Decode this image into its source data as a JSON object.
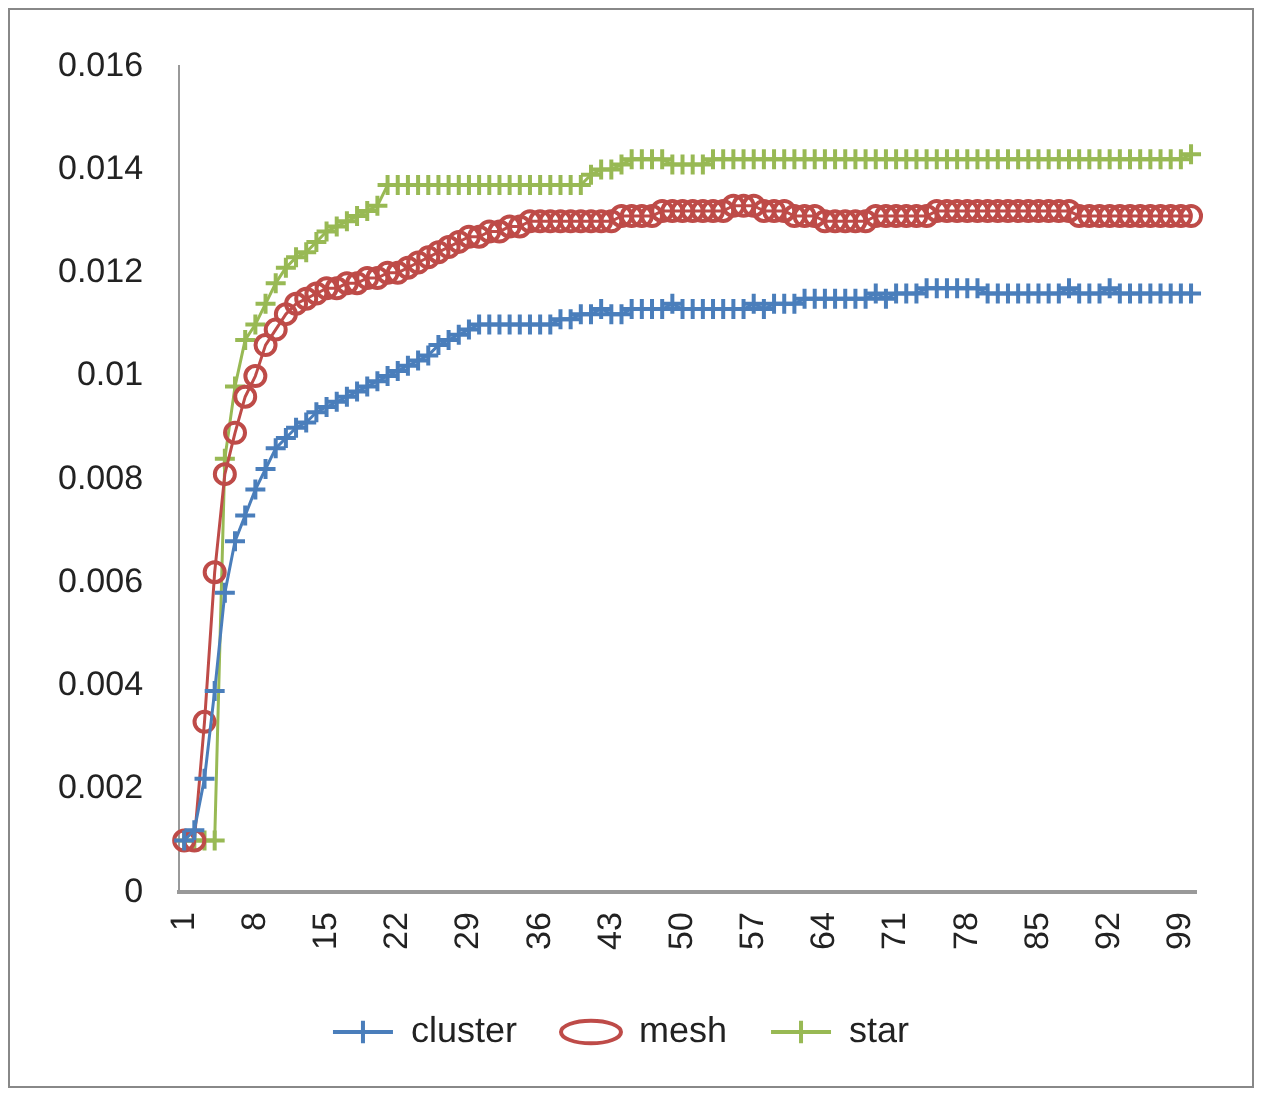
{
  "chart_data": {
    "type": "line",
    "categories": [
      "1",
      null,
      null,
      null,
      null,
      null,
      null,
      "8",
      null,
      null,
      null,
      null,
      null,
      null,
      "15",
      null,
      null,
      null,
      null,
      null,
      null,
      "22",
      null,
      null,
      null,
      null,
      null,
      null,
      "29",
      null,
      null,
      null,
      null,
      null,
      null,
      "36",
      null,
      null,
      null,
      null,
      null,
      null,
      "43",
      null,
      null,
      null,
      null,
      null,
      null,
      "50",
      null,
      null,
      null,
      null,
      null,
      null,
      "57",
      null,
      null,
      null,
      null,
      null,
      null,
      "64",
      null,
      null,
      null,
      null,
      null,
      null,
      "71",
      null,
      null,
      null,
      null,
      null,
      null,
      "78",
      null,
      null,
      null,
      null,
      null,
      null,
      "85",
      null,
      null,
      null,
      null,
      null,
      null,
      "92",
      null,
      null,
      null,
      null,
      null,
      null,
      "99",
      null
    ],
    "series": [
      {
        "name": "cluster",
        "color": "#4a7ebb",
        "marker": "cross",
        "values": [
          0.001,
          0.0012,
          0.0022,
          0.0039,
          0.0058,
          0.0068,
          0.0073,
          0.0078,
          0.0082,
          0.0086,
          0.0088,
          0.009,
          0.0091,
          0.0093,
          0.0094,
          0.0095,
          0.0096,
          0.0097,
          0.0098,
          0.0099,
          0.01,
          0.0101,
          0.0102,
          0.0103,
          0.0104,
          0.0106,
          0.0107,
          0.0108,
          0.0109,
          0.011,
          0.011,
          0.011,
          0.011,
          0.011,
          0.011,
          0.011,
          0.011,
          0.0111,
          0.0111,
          0.0112,
          0.0112,
          0.0113,
          0.0112,
          0.0112,
          0.0113,
          0.0113,
          0.0113,
          0.0113,
          0.0114,
          0.0113,
          0.0113,
          0.0113,
          0.0113,
          0.0113,
          0.0113,
          0.0113,
          0.0114,
          0.0113,
          0.0114,
          0.0114,
          0.0114,
          0.0115,
          0.0115,
          0.0115,
          0.0115,
          0.0115,
          0.0115,
          0.0115,
          0.0116,
          0.0115,
          0.0116,
          0.0116,
          0.0116,
          0.0117,
          0.0117,
          0.0117,
          0.0117,
          0.0117,
          0.0117,
          0.0116,
          0.0116,
          0.0116,
          0.0116,
          0.0116,
          0.0116,
          0.0116,
          0.0116,
          0.0117,
          0.0116,
          0.0116,
          0.0116,
          0.0117,
          0.0116,
          0.0116,
          0.0116,
          0.0116,
          0.0116,
          0.0116,
          0.0116,
          0.0116
        ]
      },
      {
        "name": "mesh",
        "color": "#be4b48",
        "marker": "circle",
        "values": [
          0.001,
          0.001,
          0.0033,
          0.0062,
          0.0081,
          0.0089,
          0.0096,
          0.01,
          0.0106,
          0.0109,
          0.0112,
          0.0114,
          0.0115,
          0.0116,
          0.0117,
          0.0117,
          0.0118,
          0.0118,
          0.0119,
          0.0119,
          0.012,
          0.012,
          0.0121,
          0.0122,
          0.0123,
          0.0124,
          0.0125,
          0.0126,
          0.0127,
          0.0127,
          0.0128,
          0.0128,
          0.0129,
          0.0129,
          0.013,
          0.013,
          0.013,
          0.013,
          0.013,
          0.013,
          0.013,
          0.013,
          0.013,
          0.0131,
          0.0131,
          0.0131,
          0.0131,
          0.0132,
          0.0132,
          0.0132,
          0.0132,
          0.0132,
          0.0132,
          0.0132,
          0.0133,
          0.0133,
          0.0133,
          0.0132,
          0.0132,
          0.0132,
          0.0131,
          0.0131,
          0.0131,
          0.013,
          0.013,
          0.013,
          0.013,
          0.013,
          0.0131,
          0.0131,
          0.0131,
          0.0131,
          0.0131,
          0.0131,
          0.0132,
          0.0132,
          0.0132,
          0.0132,
          0.0132,
          0.0132,
          0.0132,
          0.0132,
          0.0132,
          0.0132,
          0.0132,
          0.0132,
          0.0132,
          0.0132,
          0.0131,
          0.0131,
          0.0131,
          0.0131,
          0.0131,
          0.0131,
          0.0131,
          0.0131,
          0.0131,
          0.0131,
          0.0131,
          0.0131
        ]
      },
      {
        "name": "star",
        "color": "#98b954",
        "marker": "cross",
        "values": [
          0.001,
          0.001,
          0.001,
          0.001,
          0.0084,
          0.0098,
          0.0107,
          0.011,
          0.0114,
          0.0118,
          0.0121,
          0.0123,
          0.0124,
          0.0126,
          0.0128,
          0.0129,
          0.013,
          0.0131,
          0.0132,
          0.0133,
          0.0137,
          0.0137,
          0.0137,
          0.0137,
          0.0137,
          0.0137,
          0.0137,
          0.0137,
          0.0137,
          0.0137,
          0.0137,
          0.0137,
          0.0137,
          0.0137,
          0.0137,
          0.0137,
          0.0137,
          0.0137,
          0.0137,
          0.0137,
          0.0139,
          0.014,
          0.014,
          0.0141,
          0.0142,
          0.0142,
          0.0142,
          0.0142,
          0.0141,
          0.0141,
          0.0141,
          0.0141,
          0.0142,
          0.0142,
          0.0142,
          0.0142,
          0.0142,
          0.0142,
          0.0142,
          0.0142,
          0.0142,
          0.0142,
          0.0142,
          0.0142,
          0.0142,
          0.0142,
          0.0142,
          0.0142,
          0.0142,
          0.0142,
          0.0142,
          0.0142,
          0.0142,
          0.0142,
          0.0142,
          0.0142,
          0.0142,
          0.0142,
          0.0142,
          0.0142,
          0.0142,
          0.0142,
          0.0142,
          0.0142,
          0.0142,
          0.0142,
          0.0142,
          0.0142,
          0.0142,
          0.0142,
          0.0142,
          0.0142,
          0.0142,
          0.0142,
          0.0142,
          0.0142,
          0.0142,
          0.0142,
          0.0142,
          0.0143
        ]
      }
    ],
    "ylim": [
      0,
      0.016
    ],
    "yticks": [
      0,
      0.002,
      0.004,
      0.006,
      0.008,
      0.01,
      0.012,
      0.014,
      0.016
    ],
    "grid": false,
    "legend": "bottom"
  }
}
